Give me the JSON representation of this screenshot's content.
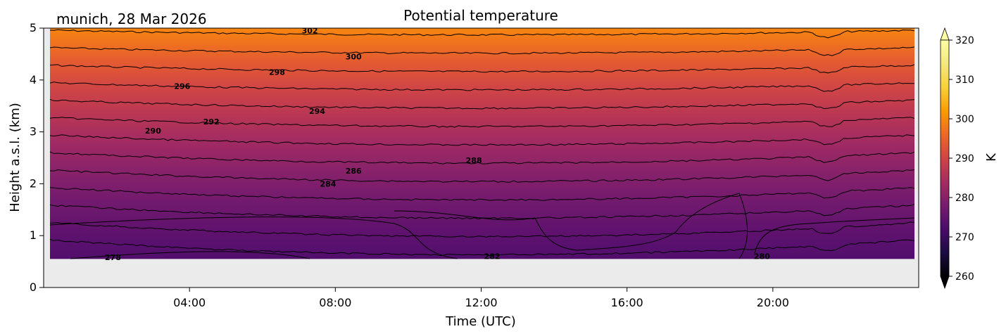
{
  "chart_data": {
    "type": "heatmap",
    "title": "Potential temperature",
    "subtitle": "munich, 28 Mar 2026",
    "xlabel": "Time (UTC)",
    "ylabel": "Height a.s.l. (km)",
    "x_range_hours": [
      0,
      24
    ],
    "x_ticks": [
      {
        "hour": 4,
        "label": "04:00"
      },
      {
        "hour": 8,
        "label": "08:00"
      },
      {
        "hour": 12,
        "label": "12:00"
      },
      {
        "hour": 16,
        "label": "16:00"
      },
      {
        "hour": 20,
        "label": "20:00"
      }
    ],
    "y_range_km": [
      0,
      5
    ],
    "y_ticks": [
      0,
      1,
      2,
      3,
      4,
      5
    ],
    "data_bottom_km": 0.55,
    "colormap": "inferno",
    "colorbar": {
      "label": "K",
      "range": [
        260,
        320
      ],
      "ticks": [
        260,
        270,
        280,
        290,
        300,
        310,
        320
      ],
      "extend": "both"
    },
    "colors": {
      "missing_data": "#ebebeb",
      "contour": "#000000"
    },
    "contour_labels": [
      {
        "value": "278",
        "hour": 1.9,
        "km": 0.58
      },
      {
        "value": "280",
        "hour": 19.7,
        "km": 0.6
      },
      {
        "value": "282",
        "hour": 12.3,
        "km": 0.6
      },
      {
        "value": "284",
        "hour": 7.8,
        "km": 2.0
      },
      {
        "value": "286",
        "hour": 8.5,
        "km": 2.25
      },
      {
        "value": "288",
        "hour": 11.8,
        "km": 2.45
      },
      {
        "value": "290",
        "hour": 3.0,
        "km": 3.02
      },
      {
        "value": "292",
        "hour": 4.6,
        "km": 3.2
      },
      {
        "value": "294",
        "hour": 7.5,
        "km": 3.4
      },
      {
        "value": "296",
        "hour": 3.8,
        "km": 3.88
      },
      {
        "value": "298",
        "hour": 6.4,
        "km": 4.15
      },
      {
        "value": "300",
        "hour": 8.5,
        "km": 4.45
      },
      {
        "value": "302",
        "hour": 7.3,
        "km": 4.95
      }
    ]
  }
}
